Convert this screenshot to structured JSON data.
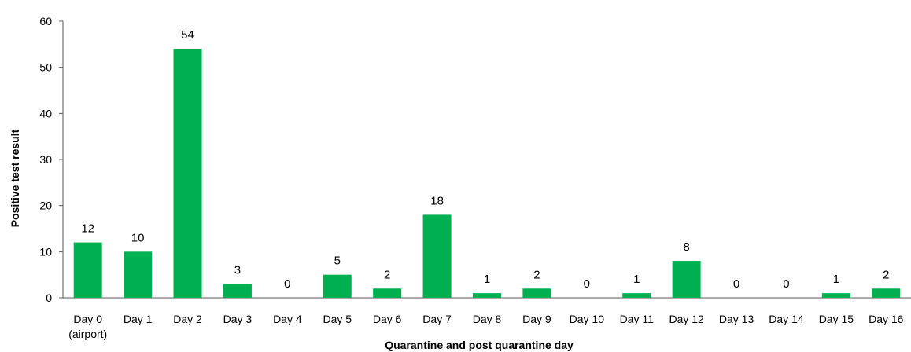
{
  "chart_data": {
    "type": "bar",
    "title": "",
    "xlabel": "Quarantine and post quarantine day",
    "ylabel": "Positive test result",
    "categories": [
      [
        "Day 0",
        "(airport)"
      ],
      [
        "Day 1"
      ],
      [
        "Day 2"
      ],
      [
        "Day 3"
      ],
      [
        "Day 4"
      ],
      [
        "Day 5"
      ],
      [
        "Day 6"
      ],
      [
        "Day 7"
      ],
      [
        "Day 8"
      ],
      [
        "Day 9"
      ],
      [
        "Day 10"
      ],
      [
        "Day 11"
      ],
      [
        "Day 12"
      ],
      [
        "Day 13"
      ],
      [
        "Day 14"
      ],
      [
        "Day 15"
      ],
      [
        "Day 16"
      ]
    ],
    "values": [
      12,
      10,
      54,
      3,
      0,
      5,
      2,
      18,
      1,
      2,
      0,
      1,
      8,
      0,
      0,
      1,
      2
    ],
    "ylim": [
      0,
      60
    ],
    "yticks": [
      0,
      10,
      20,
      30,
      40,
      50,
      60
    ],
    "grid": false,
    "legend": "none",
    "bar_color": "#00B050"
  }
}
